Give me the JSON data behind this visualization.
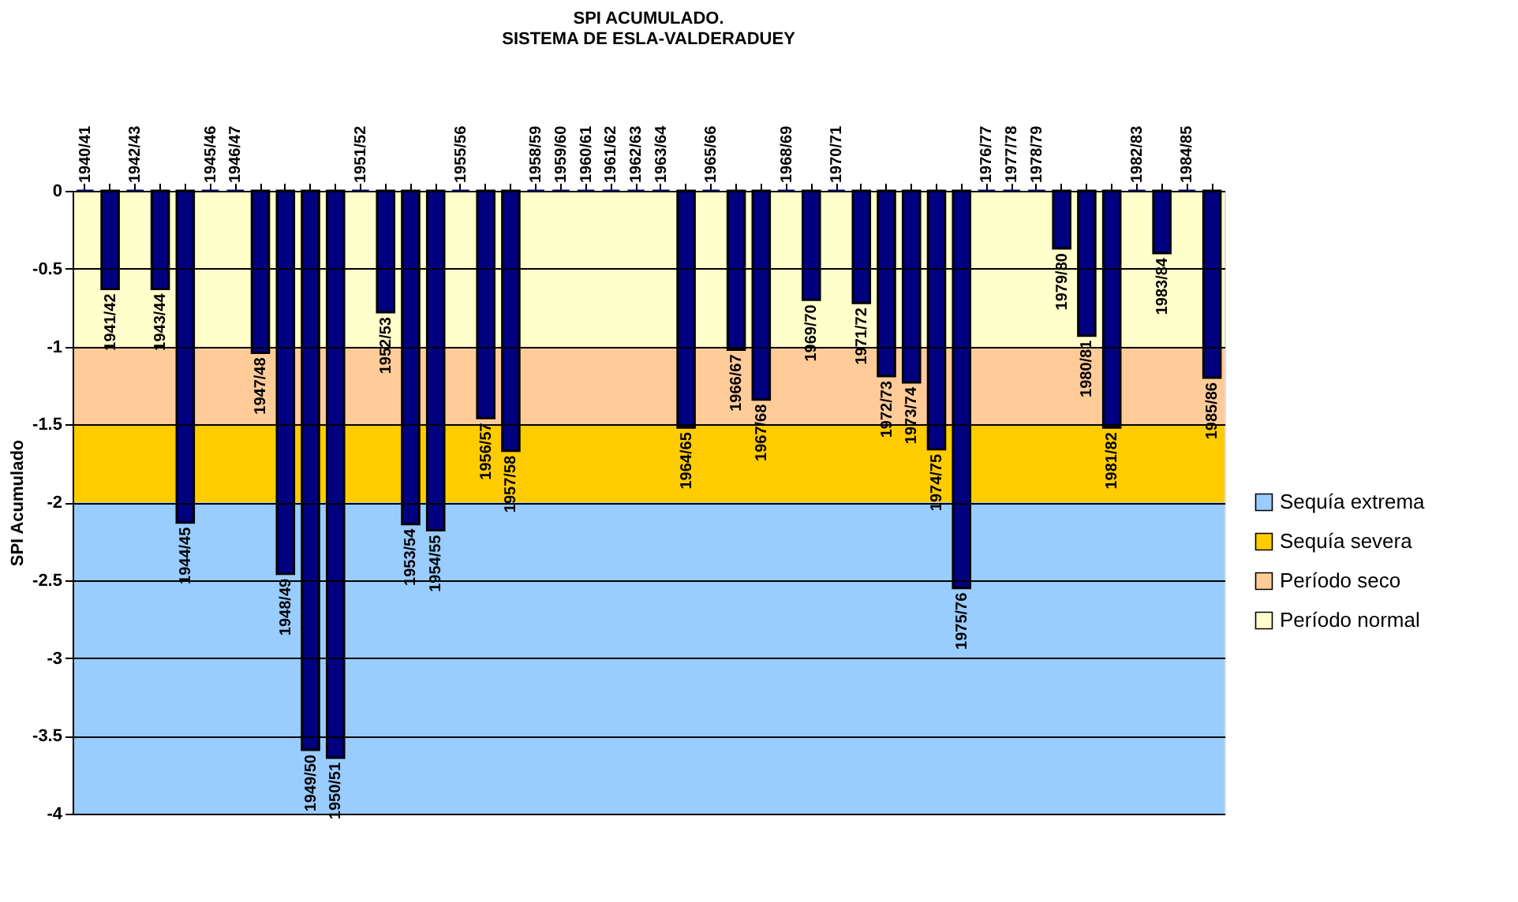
{
  "chart_data": {
    "type": "bar",
    "title": "SPI ACUMULADO.\nSISTEMA DE ESLA-VALDERADUEY",
    "ylabel": "SPI Acumulado",
    "categories": [
      "1940/41",
      "1941/42",
      "1942/43",
      "1943/44",
      "1944/45",
      "1945/46",
      "1946/47",
      "1947/48",
      "1948/49",
      "1949/50",
      "1950/51",
      "1951/52",
      "1952/53",
      "1953/54",
      "1954/55",
      "1955/56",
      "1956/57",
      "1957/58",
      "1958/59",
      "1959/60",
      "1960/61",
      "1961/62",
      "1962/63",
      "1963/64",
      "1964/65",
      "1965/66",
      "1966/67",
      "1967/68",
      "1968/69",
      "1969/70",
      "1970/71",
      "1971/72",
      "1972/73",
      "1973/74",
      "1974/75",
      "1975/76",
      "1976/77",
      "1977/78",
      "1978/79",
      "1979/80",
      "1980/81",
      "1981/82",
      "1982/83",
      "1983/84",
      "1984/85",
      "1985/86"
    ],
    "values": [
      0,
      -0.63,
      0,
      -0.63,
      -2.13,
      0,
      0,
      -1.04,
      -2.46,
      -3.59,
      -3.64,
      0,
      -0.78,
      -2.14,
      -2.18,
      0,
      -1.46,
      -1.67,
      0,
      0,
      0,
      0,
      0,
      0,
      -1.52,
      0,
      -1.02,
      -1.34,
      0,
      -0.7,
      0,
      -0.72,
      -1.19,
      -1.23,
      -1.66,
      -2.55,
      0,
      0,
      0,
      -0.37,
      -0.93,
      -1.52,
      0,
      -0.4,
      0,
      -1.2
    ],
    "color": "#000080",
    "ylim": [
      -4,
      0
    ],
    "yticks": [
      0,
      -0.5,
      -1,
      -1.5,
      -2,
      -2.5,
      -3,
      -3.5,
      -4
    ],
    "bands": [
      {
        "axis": "y",
        "from": -4,
        "to": -2,
        "label": "Sequía extrema",
        "color": "#99ccff"
      },
      {
        "axis": "y",
        "from": -2,
        "to": -1.5,
        "label": "Sequía severa",
        "color": "#ffcc00"
      },
      {
        "axis": "y",
        "from": -1.5,
        "to": -1,
        "label": "Período seco",
        "color": "#ffcc99"
      },
      {
        "axis": "y",
        "from": -1,
        "to": 0,
        "label": "Período normal",
        "color": "#ffffcc"
      }
    ],
    "grid": "y",
    "legend": "right"
  }
}
